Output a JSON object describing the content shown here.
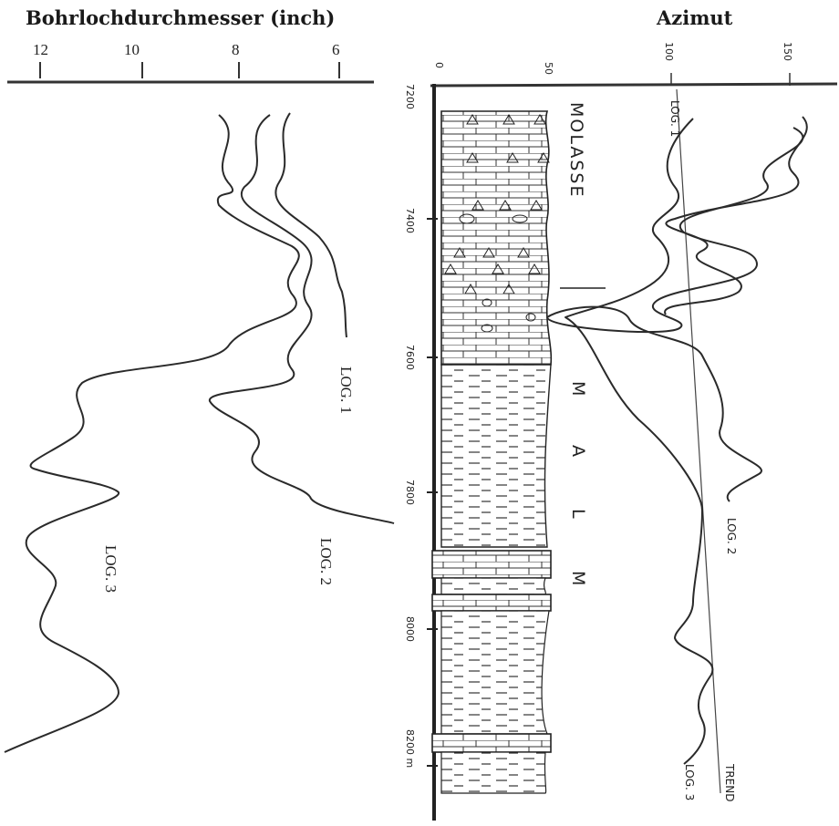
{
  "left_panel": {
    "title": "Bohrlochdurchmesser (inch)",
    "ticks": [
      "12",
      "10",
      "8",
      "6"
    ],
    "labels": [
      "LOG. 1",
      "LOG. 2",
      "LOG. 3"
    ]
  },
  "right_panel": {
    "title": "Azimut",
    "ticks": [
      "100",
      "150"
    ],
    "labels": [
      "LOG. 1",
      "LOG. 2",
      "LOG. 3",
      "TREND"
    ]
  },
  "column": {
    "scale_ticks": [
      "0",
      "50"
    ],
    "depths": [
      "7200",
      "7400",
      "7600",
      "7800",
      "8000",
      "8200 m"
    ],
    "formations": [
      "MOLASSE",
      "M",
      "A",
      "L",
      "M"
    ]
  }
}
